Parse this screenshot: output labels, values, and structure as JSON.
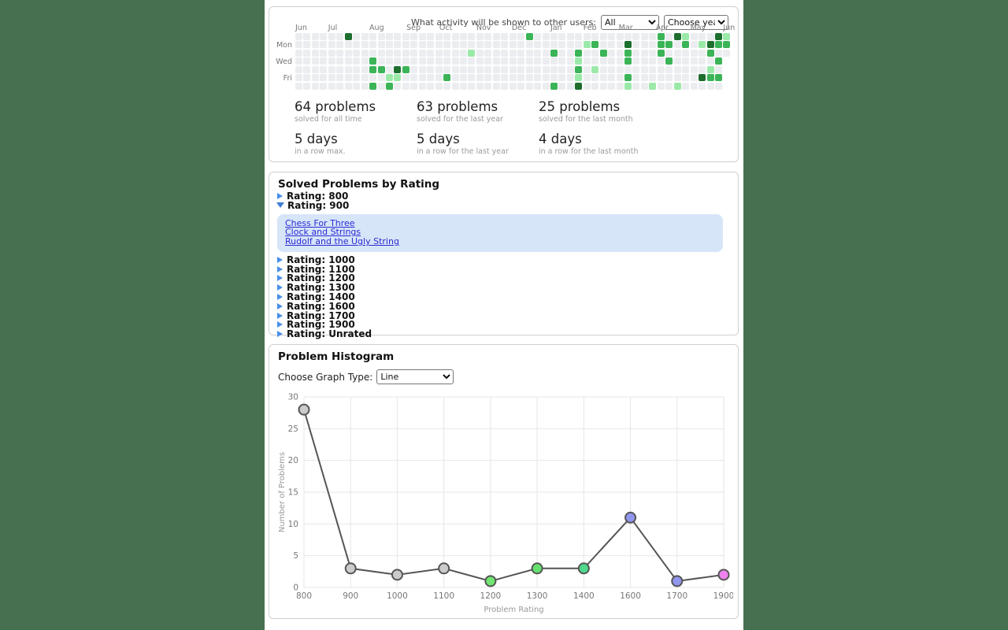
{
  "page": {
    "desktop_background_color": "#477050",
    "content_background_color": "#ffffff"
  },
  "activity_panel": {
    "visibility_label": "What activity will be shown to other users:",
    "visibility_select_value": "All",
    "year_select_value": "Choose year",
    "heatmap": {
      "weeks": 53,
      "rows": 7,
      "last_week_rows": 3,
      "month_labels": [
        {
          "label": "Jun",
          "col": 0
        },
        {
          "label": "Jul",
          "col": 4
        },
        {
          "label": "Aug",
          "col": 9
        },
        {
          "label": "Sep",
          "col": 13.5
        },
        {
          "label": "Oct",
          "col": 17.5
        },
        {
          "label": "Nov",
          "col": 22
        },
        {
          "label": "Dec",
          "col": 26.3
        },
        {
          "label": "Jan",
          "col": 31
        },
        {
          "label": "Feb",
          "col": 35
        },
        {
          "label": "Mar",
          "col": 39.3
        },
        {
          "label": "Apr",
          "col": 43.8
        },
        {
          "label": "May",
          "col": 48
        },
        {
          "label": "Jun",
          "col": 52
        }
      ],
      "day_labels": [
        {
          "label": "Mon",
          "row": 1
        },
        {
          "label": "Wed",
          "row": 3
        },
        {
          "label": "Fri",
          "row": 5
        }
      ],
      "colors": {
        "empty": "#ebedf0",
        "level1": "#9be9a8",
        "level2": "#3bb457",
        "level3": "#1e6e2e"
      },
      "cells": [
        [
          6,
          0,
          3
        ],
        [
          28,
          0,
          2
        ],
        [
          44,
          0,
          2
        ],
        [
          46,
          0,
          3
        ],
        [
          47,
          0,
          1
        ],
        [
          51,
          0,
          3
        ],
        [
          52,
          0,
          1
        ],
        [
          35,
          1,
          1
        ],
        [
          36,
          1,
          2
        ],
        [
          40,
          1,
          3
        ],
        [
          44,
          1,
          2
        ],
        [
          45,
          1,
          2
        ],
        [
          47,
          1,
          2
        ],
        [
          49,
          1,
          1
        ],
        [
          50,
          1,
          3
        ],
        [
          51,
          1,
          2
        ],
        [
          52,
          1,
          2
        ],
        [
          21,
          2,
          1
        ],
        [
          31,
          2,
          2
        ],
        [
          34,
          2,
          2
        ],
        [
          37,
          2,
          2
        ],
        [
          40,
          2,
          2
        ],
        [
          44,
          2,
          2
        ],
        [
          50,
          2,
          2
        ],
        [
          9,
          3,
          2
        ],
        [
          34,
          3,
          1
        ],
        [
          40,
          3,
          2
        ],
        [
          45,
          3,
          2
        ],
        [
          51,
          3,
          2
        ],
        [
          9,
          4,
          2
        ],
        [
          10,
          4,
          2
        ],
        [
          12,
          4,
          3
        ],
        [
          13,
          4,
          2
        ],
        [
          34,
          4,
          2
        ],
        [
          36,
          4,
          1
        ],
        [
          50,
          4,
          1
        ],
        [
          11,
          5,
          1
        ],
        [
          12,
          5,
          1
        ],
        [
          18,
          5,
          2
        ],
        [
          34,
          5,
          1
        ],
        [
          40,
          5,
          2
        ],
        [
          49,
          5,
          3
        ],
        [
          50,
          5,
          2
        ],
        [
          51,
          5,
          2
        ],
        [
          9,
          6,
          2
        ],
        [
          11,
          6,
          2
        ],
        [
          31,
          6,
          2
        ],
        [
          34,
          6,
          3
        ],
        [
          40,
          6,
          1
        ],
        [
          43,
          6,
          1
        ],
        [
          46,
          6,
          1
        ]
      ]
    },
    "stats": [
      {
        "value": "64 problems",
        "caption": "solved for all time"
      },
      {
        "value": "63 problems",
        "caption": "solved for the last year"
      },
      {
        "value": "25 problems",
        "caption": "solved for the last month"
      },
      {
        "value": "5 days",
        "caption": "in a row max."
      },
      {
        "value": "5 days",
        "caption": "in a row for the last year"
      },
      {
        "value": "4 days",
        "caption": "in a row for the last month"
      }
    ]
  },
  "ratings_panel": {
    "title": "Solved Problems by Rating",
    "groups": [
      {
        "label": "Rating: 800",
        "expanded": false
      },
      {
        "label": "Rating: 900",
        "expanded": true,
        "problems": [
          "Chess For Three",
          "Clock and Strings",
          "Rudolf and the Ugly String"
        ]
      },
      {
        "label": "Rating: 1000",
        "expanded": false
      },
      {
        "label": "Rating: 1100",
        "expanded": false
      },
      {
        "label": "Rating: 1200",
        "expanded": false
      },
      {
        "label": "Rating: 1300",
        "expanded": false
      },
      {
        "label": "Rating: 1400",
        "expanded": false
      },
      {
        "label": "Rating: 1600",
        "expanded": false
      },
      {
        "label": "Rating: 1700",
        "expanded": false
      },
      {
        "label": "Rating: 1900",
        "expanded": false
      },
      {
        "label": "Rating: Unrated",
        "expanded": false
      }
    ]
  },
  "histogram_panel": {
    "title": "Problem Histogram",
    "graph_type_label": "Choose Graph Type:",
    "graph_type_value": "Line"
  },
  "chart_data": {
    "type": "line",
    "title": "Problem Histogram",
    "x": [
      800,
      900,
      1000,
      1100,
      1200,
      1300,
      1400,
      1600,
      1700,
      1900
    ],
    "values": [
      28,
      3,
      2,
      3,
      1,
      3,
      3,
      11,
      1,
      2
    ],
    "point_colors": [
      "#cbcbcb",
      "#cbcbcb",
      "#cbcbcb",
      "#cbcbcb",
      "#71e671",
      "#64e06e",
      "#4fd98c",
      "#9196ee",
      "#9196ee",
      "#ee82ee"
    ],
    "line_color": "#555555",
    "grid_color": "#e6e6e6",
    "xlabel": "Problem Rating",
    "ylabel": "Number of Problems",
    "ylim": [
      0,
      30
    ],
    "ytick_step": 5,
    "grid": true,
    "legend": "none"
  }
}
